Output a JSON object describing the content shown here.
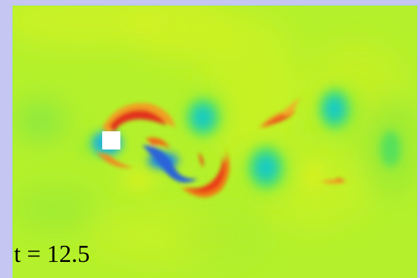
{
  "figure": {
    "time_label": "t = 12.5",
    "colors": {
      "background_frame": "#c6c6f2",
      "field_base": "#b6f22a",
      "positive_vorticity": "#e63a10",
      "negative_vorticity": "#1aa8d8",
      "obstacle": "#ffffff"
    }
  }
}
